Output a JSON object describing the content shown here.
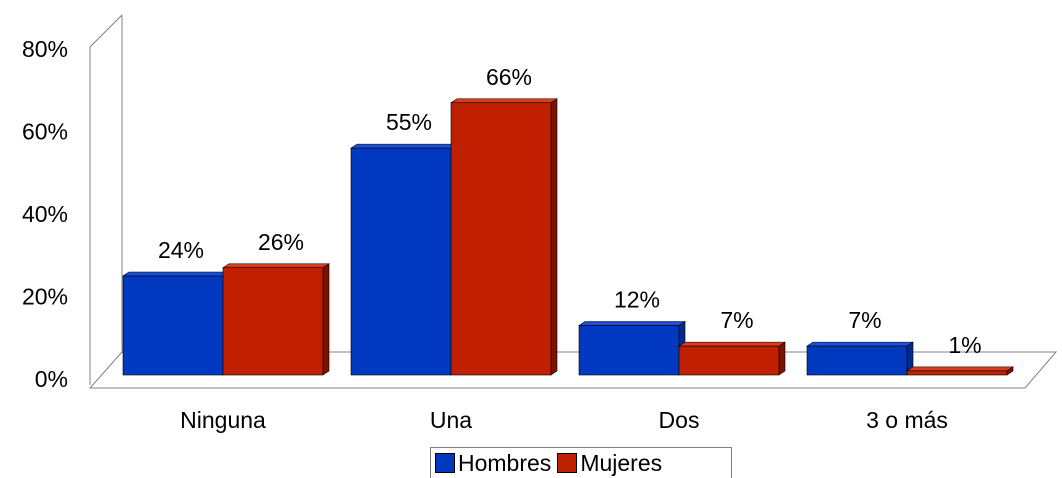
{
  "chart_data": {
    "type": "bar",
    "categories": [
      "Ninguna",
      "Una",
      "Dos",
      "3 o más"
    ],
    "series": [
      {
        "name": "Hombres",
        "values": [
          24,
          55,
          12,
          7
        ],
        "labels": [
          "24%",
          "55%",
          "12%",
          "7%"
        ],
        "color": "#0038C0",
        "side": "#002A8C",
        "top": "#1A4FD8"
      },
      {
        "name": "Mujeres",
        "values": [
          26,
          66,
          7,
          1
        ],
        "labels": [
          "26%",
          "66%",
          "7%",
          "1%"
        ],
        "color": "#C02000",
        "side": "#7A1400",
        "top": "#D83A1A"
      }
    ],
    "yticks": [
      "0%",
      "20%",
      "40%",
      "60%",
      "80%"
    ],
    "ylim": [
      0,
      80
    ],
    "grid": false,
    "legend_position": "bottom"
  }
}
